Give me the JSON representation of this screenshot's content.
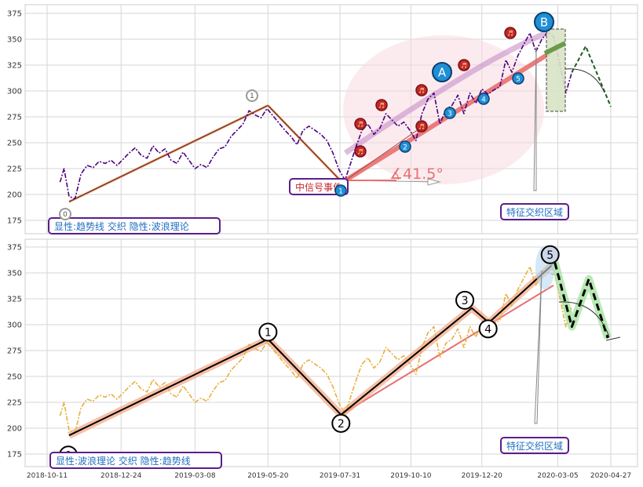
{
  "chart_data": [
    {
      "type": "line",
      "panel": "top",
      "yticks": [
        175,
        200,
        225,
        250,
        275,
        300,
        325,
        350,
        375
      ],
      "ylim": [
        165,
        385
      ],
      "grid": true,
      "labels": {
        "caption": "显性:趋势线 交织 隐性:波浪理论",
        "event_box": "中信号事件",
        "feature_box": "特征交织区域",
        "angle": "∡41.5°",
        "point_A": "A",
        "point_B": "B",
        "node_0": "0",
        "node_1": "1"
      },
      "colors": {
        "price": "#4b0082",
        "trend": "#e8706f",
        "label": "#1f6fc0",
        "marker_red": "#c0282d",
        "marker_blue": "#1f8fd6",
        "box_border": "#5b1e8a"
      },
      "series": [
        {
          "x": [
            "2018-10-24",
            "2018-10-28",
            "2018-11-02",
            "2018-11-08",
            "2018-11-14",
            "2018-11-20",
            "2018-11-26",
            "2018-12-02",
            "2018-12-08",
            "2018-12-14",
            "2018-12-20",
            "2018-12-26",
            "2019-01-01",
            "2019-01-07",
            "2019-01-13",
            "2019-01-19",
            "2019-01-25",
            "2019-01-31",
            "2019-02-06",
            "2019-02-12",
            "2019-02-18",
            "2019-02-24",
            "2019-03-02",
            "2019-03-08",
            "2019-03-14",
            "2019-03-20",
            "2019-03-26",
            "2019-04-01",
            "2019-04-07",
            "2019-04-13",
            "2019-04-19",
            "2019-04-25",
            "2019-05-01",
            "2019-05-07",
            "2019-05-13",
            "2019-05-19",
            "2019-05-25",
            "2019-05-31",
            "2019-06-06",
            "2019-06-12",
            "2019-06-18",
            "2019-06-24",
            "2019-06-30",
            "2019-07-06",
            "2019-07-12",
            "2019-07-18",
            "2019-07-24",
            "2019-07-30",
            "2019-08-05",
            "2019-08-10",
            "2019-08-16",
            "2019-08-22",
            "2019-08-28",
            "2019-09-03",
            "2019-09-09",
            "2019-09-15",
            "2019-09-21",
            "2019-09-27",
            "2019-10-03",
            "2019-10-09",
            "2019-10-15",
            "2019-10-21",
            "2019-10-27",
            "2019-11-02",
            "2019-11-08",
            "2019-11-14",
            "2019-11-20",
            "2019-11-26",
            "2019-12-02",
            "2019-12-08",
            "2019-12-14",
            "2019-12-20",
            "2019-12-26",
            "2020-01-01",
            "2020-01-07",
            "2020-01-13",
            "2020-01-19",
            "2020-01-25",
            "2020-01-31",
            "2020-02-06",
            "2020-02-12",
            "2020-02-18",
            "2020-02-24",
            "2020-03-01",
            "2020-03-07",
            "2020-03-13",
            "2020-03-19"
          ],
          "y": [
            212,
            225,
            198,
            196,
            220,
            228,
            226,
            232,
            230,
            233,
            228,
            234,
            240,
            245,
            238,
            235,
            247,
            240,
            244,
            233,
            230,
            241,
            233,
            225,
            229,
            226,
            236,
            244,
            246,
            256,
            262,
            268,
            281,
            277,
            274,
            283,
            276,
            269,
            262,
            256,
            248,
            262,
            266,
            262,
            258,
            252,
            240,
            224,
            214,
            228,
            246,
            262,
            268,
            258,
            264,
            278,
            272,
            266,
            270,
            262,
            252,
            278,
            292,
            298,
            268,
            282,
            286,
            296,
            278,
            298,
            288,
            302,
            297,
            301,
            304,
            330,
            318,
            334,
            345,
            356,
            338,
            350,
            357,
            352,
            326,
            298,
            318
          ]
        }
      ]
    },
    {
      "type": "line",
      "panel": "bottom",
      "yticks": [
        175,
        200,
        225,
        250,
        275,
        300,
        325,
        350,
        375
      ],
      "xticks": [
        "2018-10-11",
        "2018-12-24",
        "2019-03-08",
        "2019-05-20",
        "2019-07-31",
        "2019-10-10",
        "2019-12-20",
        "2020-03-05",
        "2020-04-27"
      ],
      "ylim": [
        165,
        385
      ],
      "grid": true,
      "labels": {
        "caption": "显性:波浪理论 交织 隐性:趋势线",
        "feature_box": "特征交织区域",
        "wave_0": "0",
        "wave_1": "1",
        "wave_2": "2",
        "wave_3": "3",
        "wave_4": "4",
        "wave_5": "5"
      },
      "colors": {
        "price": "#e8b03c",
        "wave": "#000000",
        "wave_glow": "#f4a582",
        "trend": "#e8706f",
        "forecast": "#000000",
        "forecast_glow": "#a6e3a1"
      },
      "series": [
        {
          "x": [
            "2018-10-24",
            "2018-10-28",
            "2018-11-02",
            "2018-11-08",
            "2018-11-14",
            "2018-11-20",
            "2018-11-26",
            "2018-12-02",
            "2018-12-08",
            "2018-12-14",
            "2018-12-20",
            "2018-12-26",
            "2019-01-01",
            "2019-01-07",
            "2019-01-13",
            "2019-01-19",
            "2019-01-25",
            "2019-01-31",
            "2019-02-06",
            "2019-02-12",
            "2019-02-18",
            "2019-02-24",
            "2019-03-02",
            "2019-03-08",
            "2019-03-14",
            "2019-03-20",
            "2019-03-26",
            "2019-04-01",
            "2019-04-07",
            "2019-04-13",
            "2019-04-19",
            "2019-04-25",
            "2019-05-01",
            "2019-05-07",
            "2019-05-13",
            "2019-05-19",
            "2019-05-25",
            "2019-05-31",
            "2019-06-06",
            "2019-06-12",
            "2019-06-18",
            "2019-06-24",
            "2019-06-30",
            "2019-07-06",
            "2019-07-12",
            "2019-07-18",
            "2019-07-24",
            "2019-07-30",
            "2019-08-05",
            "2019-08-10",
            "2019-08-16",
            "2019-08-22",
            "2019-08-28",
            "2019-09-03",
            "2019-09-09",
            "2019-09-15",
            "2019-09-21",
            "2019-09-27",
            "2019-10-03",
            "2019-10-09",
            "2019-10-15",
            "2019-10-21",
            "2019-10-27",
            "2019-11-02",
            "2019-11-08",
            "2019-11-14",
            "2019-11-20",
            "2019-11-26",
            "2019-12-02",
            "2019-12-08",
            "2019-12-14",
            "2019-12-20",
            "2019-12-26",
            "2020-01-01",
            "2020-01-07",
            "2020-01-13",
            "2020-01-19",
            "2020-01-25",
            "2020-01-31",
            "2020-02-06",
            "2020-02-12",
            "2020-02-18",
            "2020-02-24",
            "2020-03-01",
            "2020-03-07",
            "2020-03-13",
            "2020-03-19"
          ],
          "y": [
            212,
            225,
            198,
            196,
            220,
            228,
            226,
            232,
            230,
            233,
            228,
            234,
            240,
            245,
            238,
            235,
            247,
            240,
            244,
            233,
            230,
            241,
            233,
            225,
            229,
            226,
            236,
            244,
            246,
            256,
            262,
            268,
            281,
            277,
            274,
            283,
            276,
            269,
            262,
            256,
            248,
            262,
            266,
            262,
            258,
            252,
            240,
            224,
            214,
            228,
            246,
            262,
            268,
            258,
            264,
            278,
            272,
            266,
            270,
            262,
            252,
            278,
            292,
            298,
            268,
            282,
            286,
            296,
            278,
            298,
            288,
            302,
            297,
            301,
            304,
            330,
            318,
            334,
            345,
            356,
            338,
            350,
            357,
            352,
            326,
            298,
            318
          ]
        }
      ],
      "wave_points": [
        {
          "label": "0",
          "x": "2018-11-02",
          "y": 193
        },
        {
          "label": "1",
          "x": "2019-05-20",
          "y": 286
        },
        {
          "label": "2",
          "x": "2019-08-01",
          "y": 213
        },
        {
          "label": "3",
          "x": "2019-12-10",
          "y": 316
        },
        {
          "label": "4",
          "x": "2019-12-27",
          "y": 302
        },
        {
          "label": "5",
          "x": "2020-03-02",
          "y": 360
        }
      ],
      "forecast_points": [
        {
          "x": "2020-03-02",
          "y": 360
        },
        {
          "x": "2020-03-19",
          "y": 298
        },
        {
          "x": "2020-04-05",
          "y": 344
        },
        {
          "x": "2020-04-24",
          "y": 287
        }
      ]
    }
  ]
}
